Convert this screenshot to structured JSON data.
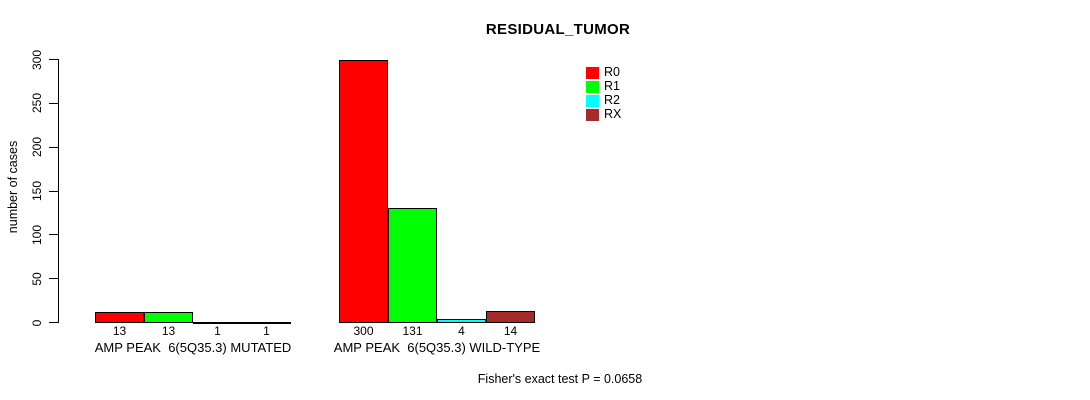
{
  "title": "RESIDUAL_TUMOR",
  "footnote": "Fisher's exact test P = 0.0658",
  "chart_data": {
    "type": "bar",
    "title": "RESIDUAL_TUMOR",
    "categories": [
      "AMP PEAK  6(5Q35.3) MUTATED",
      "AMP PEAK  6(5Q35.3) WILD-TYPE"
    ],
    "series": [
      {
        "name": "R0",
        "color": "#FF0000",
        "values": [
          13,
          300
        ]
      },
      {
        "name": "R1",
        "color": "#00FF00",
        "values": [
          13,
          131
        ]
      },
      {
        "name": "R2",
        "color": "#00FFFF",
        "values": [
          1,
          4
        ]
      },
      {
        "name": "RX",
        "color": "#A52A2A",
        "values": [
          1,
          14
        ]
      }
    ],
    "xlabel": "",
    "ylabel": "number of cases",
    "ylim": [
      0,
      300
    ],
    "yticks": [
      0,
      50,
      100,
      150,
      200,
      250,
      300
    ],
    "grid": false,
    "legend_position": "top-right",
    "bar_value_labels": true,
    "annotation": "Fisher's exact test P = 0.0658"
  }
}
